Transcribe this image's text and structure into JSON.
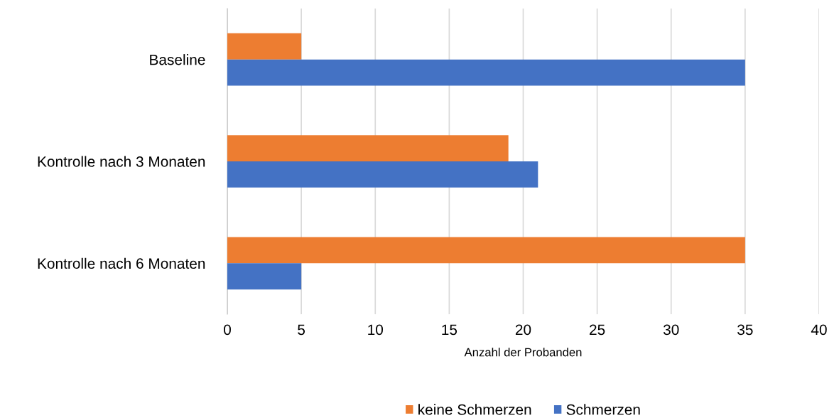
{
  "chart_data": {
    "type": "bar",
    "orientation": "horizontal",
    "xlabel": "Anzahl der Probanden",
    "categories": [
      "Baseline",
      "Kontrolle nach 3 Monaten",
      "Kontrolle nach 6 Monaten"
    ],
    "series": [
      {
        "name": "keine Schmerzen",
        "color": "#ed7d31",
        "values": [
          5,
          19,
          35
        ]
      },
      {
        "name": "Schmerzen",
        "color": "#4472c4",
        "values": [
          35,
          21,
          5
        ]
      }
    ],
    "xlim": [
      0,
      40
    ],
    "xticks": [
      0,
      5,
      10,
      15,
      20,
      25,
      30,
      35,
      40
    ],
    "grid": "x",
    "legend": "bottom"
  }
}
